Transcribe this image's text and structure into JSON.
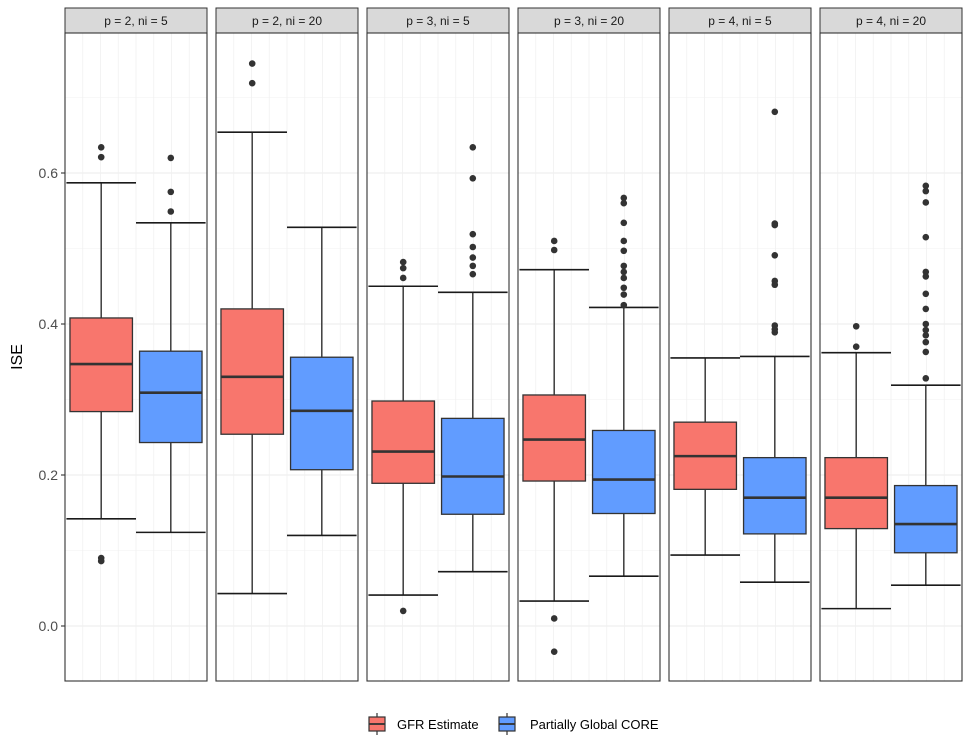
{
  "chart_data": {
    "type": "boxplot",
    "ylabel": "ISE",
    "xlabel": "",
    "ylim": [
      -0.072,
      0.8
    ],
    "yticks": [
      0.0,
      0.2,
      0.4,
      0.6
    ],
    "ytick_labels": [
      "0.0",
      "0.2",
      "0.4",
      "0.6"
    ],
    "grid": true,
    "legend_position": "bottom",
    "series": [
      {
        "name": "GFR Estimate",
        "color": "#F8766D"
      },
      {
        "name": "Partially Global CORE",
        "color": "#619CFF"
      }
    ],
    "panels": [
      {
        "label": "p = 2,  ni = 5",
        "boxes": [
          {
            "series": "GFR Estimate",
            "whisker_low": 0.142,
            "q1": 0.284,
            "median": 0.347,
            "q3": 0.408,
            "whisker_high": 0.587,
            "outliers": [
              0.634,
              0.621,
              0.09,
              0.086
            ]
          },
          {
            "series": "Partially Global CORE",
            "whisker_low": 0.124,
            "q1": 0.243,
            "median": 0.309,
            "q3": 0.364,
            "whisker_high": 0.534,
            "outliers": [
              0.62,
              0.575,
              0.549
            ]
          }
        ]
      },
      {
        "label": "p = 2, ni = 20",
        "boxes": [
          {
            "series": "GFR Estimate",
            "whisker_low": 0.043,
            "q1": 0.254,
            "median": 0.33,
            "q3": 0.42,
            "whisker_high": 0.654,
            "outliers": [
              0.745,
              0.719
            ]
          },
          {
            "series": "Partially Global CORE",
            "whisker_low": 0.12,
            "q1": 0.207,
            "median": 0.285,
            "q3": 0.356,
            "whisker_high": 0.528,
            "outliers": []
          }
        ]
      },
      {
        "label": "p = 3,  ni = 5",
        "boxes": [
          {
            "series": "GFR Estimate",
            "whisker_low": 0.041,
            "q1": 0.189,
            "median": 0.231,
            "q3": 0.298,
            "whisker_high": 0.45,
            "outliers": [
              0.482,
              0.474,
              0.461,
              0.02
            ]
          },
          {
            "series": "Partially Global CORE",
            "whisker_low": 0.072,
            "q1": 0.148,
            "median": 0.198,
            "q3": 0.275,
            "whisker_high": 0.442,
            "outliers": [
              0.634,
              0.593,
              0.519,
              0.502,
              0.488,
              0.477,
              0.466
            ]
          }
        ]
      },
      {
        "label": "p = 3,  ni = 20",
        "boxes": [
          {
            "series": "GFR Estimate",
            "whisker_low": 0.033,
            "q1": 0.192,
            "median": 0.247,
            "q3": 0.306,
            "whisker_high": 0.472,
            "outliers": [
              0.51,
              0.498,
              0.01,
              -0.034
            ]
          },
          {
            "series": "Partially Global CORE",
            "whisker_low": 0.066,
            "q1": 0.149,
            "median": 0.194,
            "q3": 0.259,
            "whisker_high": 0.422,
            "outliers": [
              0.567,
              0.56,
              0.534,
              0.51,
              0.497,
              0.477,
              0.469,
              0.461,
              0.448,
              0.439,
              0.425
            ]
          }
        ]
      },
      {
        "label": "p = 4,  ni = 5",
        "boxes": [
          {
            "series": "GFR Estimate",
            "whisker_low": 0.094,
            "q1": 0.181,
            "median": 0.225,
            "q3": 0.27,
            "whisker_high": 0.355,
            "outliers": []
          },
          {
            "series": "Partially Global CORE",
            "whisker_low": 0.058,
            "q1": 0.122,
            "median": 0.17,
            "q3": 0.223,
            "whisker_high": 0.357,
            "outliers": [
              0.681,
              0.533,
              0.531,
              0.491,
              0.457,
              0.452,
              0.398,
              0.393,
              0.389
            ]
          }
        ]
      },
      {
        "label": "p = 4,  ni = 20",
        "boxes": [
          {
            "series": "GFR Estimate",
            "whisker_low": 0.023,
            "q1": 0.129,
            "median": 0.17,
            "q3": 0.223,
            "whisker_high": 0.362,
            "outliers": [
              0.397,
              0.37
            ]
          },
          {
            "series": "Partially Global CORE",
            "whisker_low": 0.054,
            "q1": 0.097,
            "median": 0.135,
            "q3": 0.186,
            "whisker_high": 0.319,
            "outliers": [
              0.583,
              0.576,
              0.561,
              0.515,
              0.469,
              0.463,
              0.44,
              0.42,
              0.4,
              0.392,
              0.385,
              0.376,
              0.363,
              0.328
            ]
          }
        ]
      }
    ]
  }
}
